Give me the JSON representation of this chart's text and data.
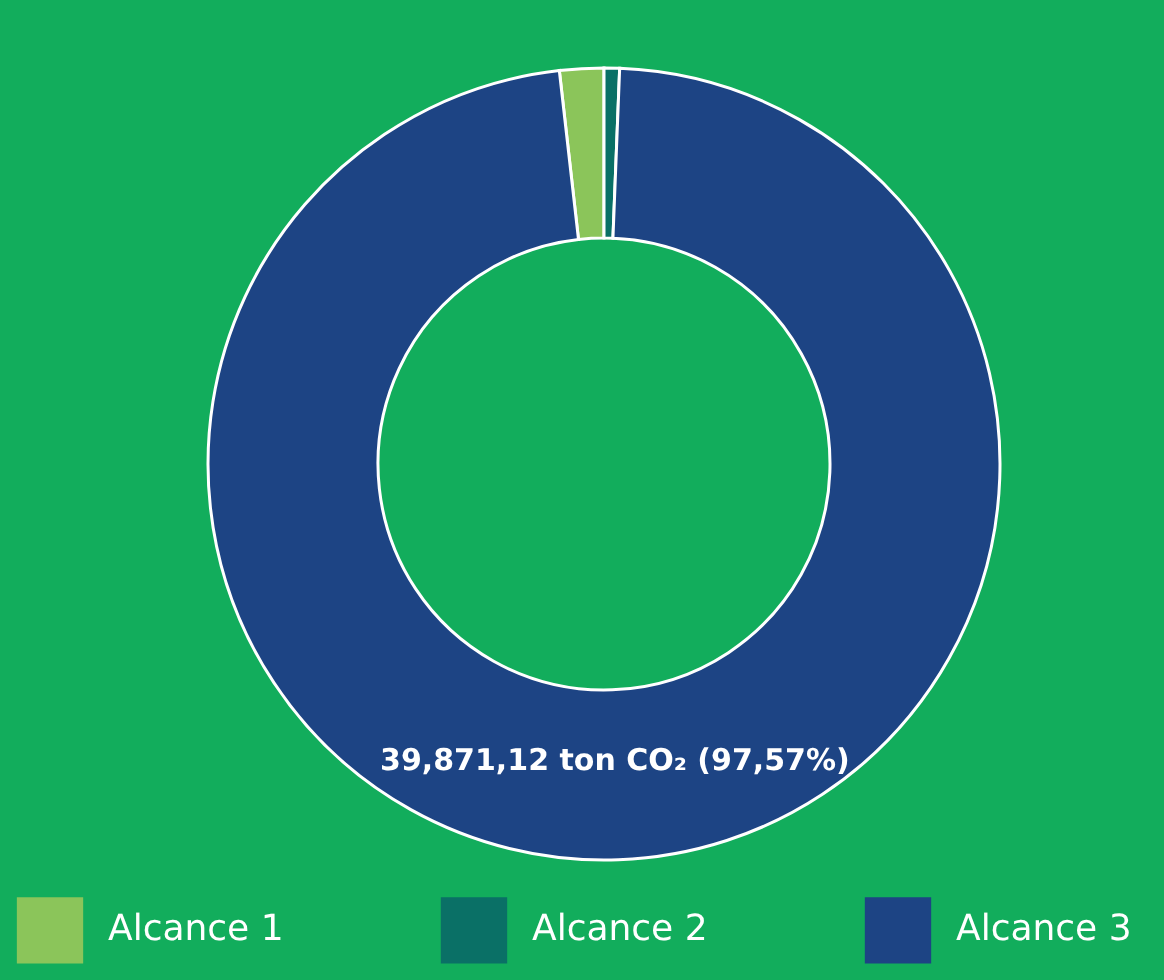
{
  "chart_data": {
    "type": "donut",
    "categories": [
      "Alcance 1",
      "Alcance 2",
      "Alcance 3"
    ],
    "values": [
      1.8,
      0.63,
      97.57
    ],
    "colors": [
      "#8bc55a",
      "#0a7066",
      "#1d4484"
    ],
    "value_labels": [
      null,
      null,
      "39,871,12 ton CO₂ (97,57%)"
    ],
    "legend": "bottom"
  }
}
